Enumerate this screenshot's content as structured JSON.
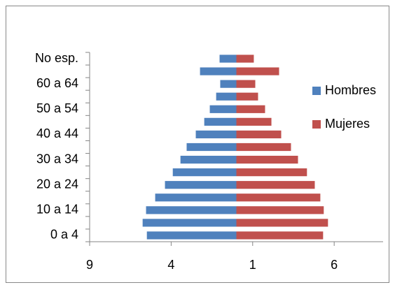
{
  "chart_data": {
    "type": "bar",
    "orientation": "horizontal",
    "stacked": "diverging",
    "categories": [
      "0 a 4",
      null,
      "10 a 14",
      null,
      "20 a 24",
      null,
      "30 a 34",
      null,
      "40 a 44",
      null,
      "50 a 54",
      null,
      "60 a 64",
      null,
      "No esp."
    ],
    "series": [
      {
        "name": "Hombres",
        "color": "#4f81bd",
        "values": [
          -5.49,
          -5.75,
          -5.54,
          -4.98,
          -4.38,
          -3.9,
          -3.43,
          -3.05,
          -2.49,
          -1.97,
          -1.63,
          -1.24,
          -0.99,
          -2.23,
          -1.03
        ]
      },
      {
        "name": "Mujeres",
        "color": "#c0504d",
        "values": [
          5.32,
          5.62,
          5.36,
          5.15,
          4.81,
          4.33,
          3.78,
          3.35,
          2.75,
          2.15,
          1.76,
          1.33,
          1.16,
          2.62,
          1.07
        ]
      }
    ],
    "xlim": [
      -9,
      9
    ],
    "xticks": [
      {
        "value": -9,
        "label": "9"
      },
      {
        "value": -4,
        "label": "4"
      },
      1,
      6
    ],
    "legend": "right"
  }
}
